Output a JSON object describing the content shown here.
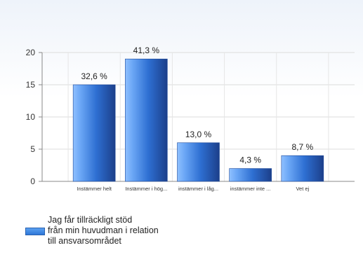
{
  "chart_data": {
    "type": "bar",
    "categories": [
      "Instämmer helt",
      "Instämmer i hög...",
      "instämmer i låg...",
      "instämmer inte ...",
      "Vet ej"
    ],
    "series": [
      {
        "name": "Jag får tillräckligt stöd från min huvudman i relation till ansvarsområdet",
        "values": [
          15,
          19,
          6,
          2,
          4
        ],
        "labels": [
          "32,6 %",
          "41,3 %",
          "13,0 %",
          "4,3 %",
          "8,7 %"
        ]
      }
    ],
    "yticks": [
      0,
      5,
      10,
      15,
      20
    ],
    "ylim": [
      0,
      20
    ],
    "grid": true,
    "legend_position": "bottom-left",
    "bar_color": "#3d7fd9"
  },
  "legend": {
    "lines": [
      "Jag får tillräckligt stöd",
      "från min huvudman i relation",
      "till ansvarsområdet"
    ]
  }
}
